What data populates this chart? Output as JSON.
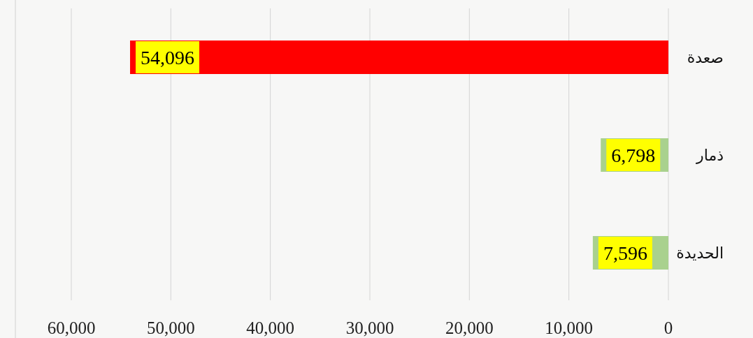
{
  "chart_data": {
    "type": "bar",
    "orientation": "horizontal",
    "categories": [
      "صعدة",
      "ذمار",
      "الحديدة"
    ],
    "values": [
      54096,
      6798,
      7596
    ],
    "colors": [
      "#ff0000",
      "#a9d18e",
      "#a9d18e"
    ],
    "xlim": [
      60000,
      0
    ],
    "xticks": [
      {
        "value": 60000,
        "label": "60,000"
      },
      {
        "value": 50000,
        "label": "50,000"
      },
      {
        "value": 40000,
        "label": "40,000"
      },
      {
        "value": 30000,
        "label": "30,000"
      },
      {
        "value": 20000,
        "label": "20,000"
      },
      {
        "value": 10000,
        "label": "10,000"
      },
      {
        "value": 0,
        "label": "0"
      }
    ],
    "value_labels": [
      "54,096",
      "6,798",
      "7,596"
    ],
    "grid": "x"
  }
}
